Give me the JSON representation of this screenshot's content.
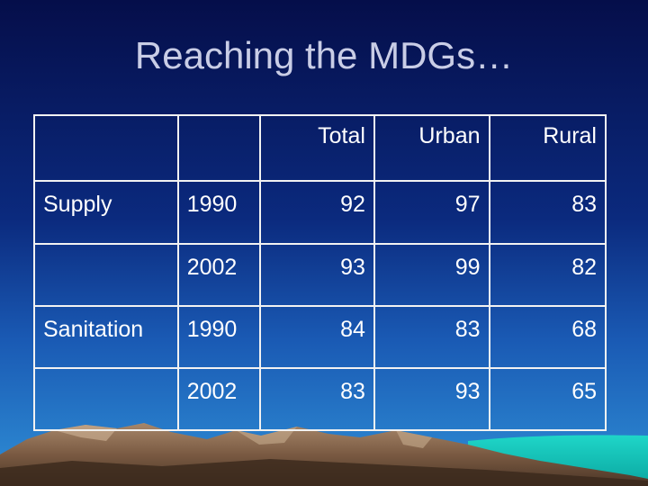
{
  "title": "Reaching the MDGs…",
  "table": {
    "headers": [
      "Total",
      "Urban",
      "Rural"
    ],
    "rows": [
      {
        "category": "Supply",
        "year": "1990",
        "total": "92",
        "urban": "97",
        "rural": "83"
      },
      {
        "category": "",
        "year": "2002",
        "total": "93",
        "urban": "99",
        "rural": "82"
      },
      {
        "category": "Sanitation",
        "year": "1990",
        "total": "84",
        "urban": "83",
        "rural": "68"
      },
      {
        "category": "",
        "year": "2002",
        "total": "83",
        "urban": "93",
        "rural": "65"
      }
    ]
  },
  "colors": {
    "background_top": "#050e4a",
    "background_bottom": "#2f8fd6",
    "title": "#c9cde6",
    "text": "#ffffff",
    "grid": "#f2f2f2"
  }
}
